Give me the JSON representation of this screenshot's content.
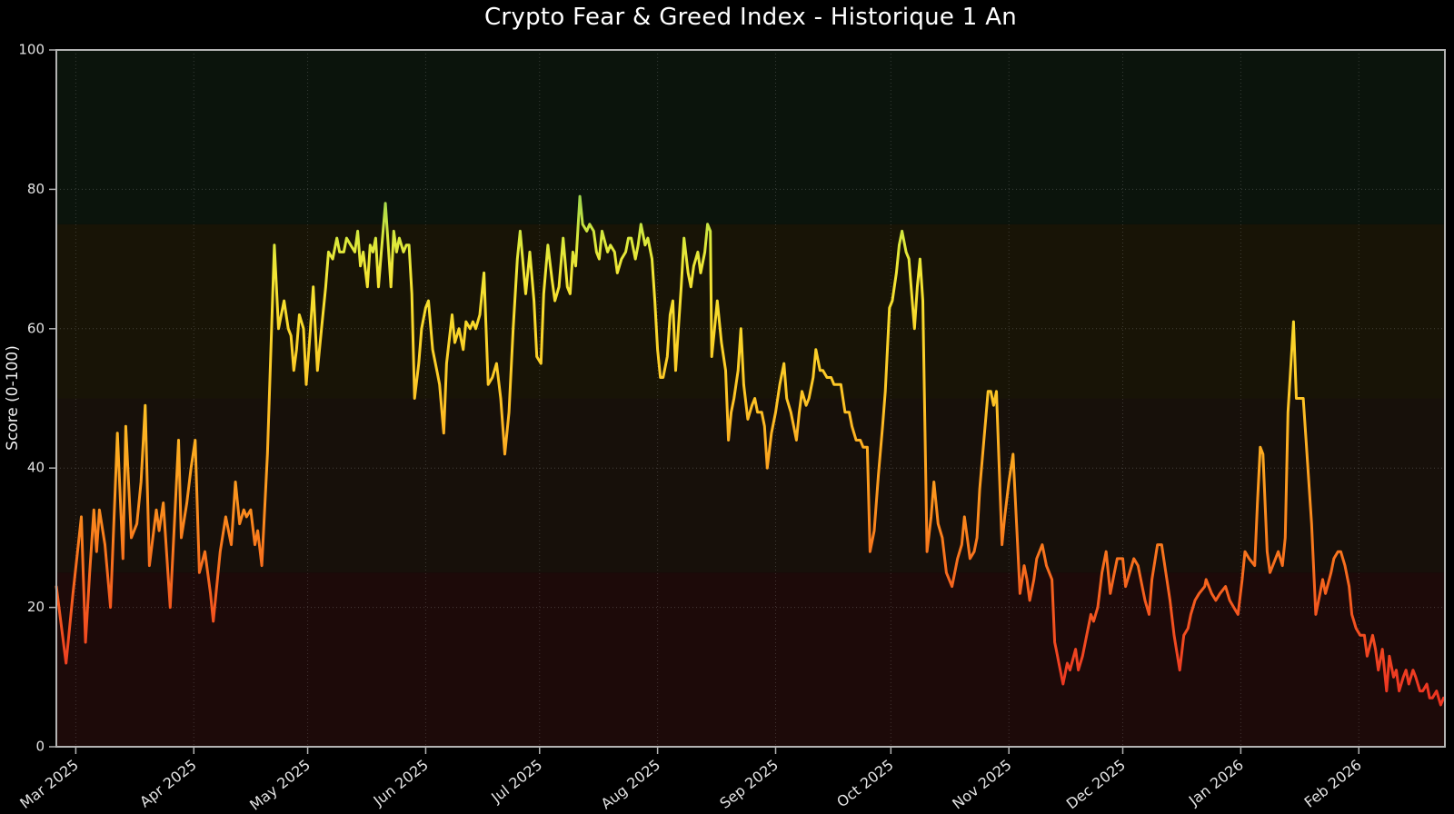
{
  "chart_data": {
    "type": "line",
    "title": "Crypto Fear & Greed Index - Historique 1 An",
    "ylabel": "Score (0-100)",
    "ylim": [
      0,
      100
    ],
    "yticks": [
      0,
      20,
      40,
      60,
      80,
      100
    ],
    "grid": "dotted, horizontal at y-ticks and vertical at month ticks",
    "legend": "none",
    "x_unit": "daily dates, late Feb 2025 to late Feb 2026",
    "x_ticks": [
      {
        "label": "Mar 2025",
        "f": 0.014
      },
      {
        "label": "Apr 2025",
        "f": 0.099
      },
      {
        "label": "May 2025",
        "f": 0.181
      },
      {
        "label": "Jun 2025",
        "f": 0.266
      },
      {
        "label": "Jul 2025",
        "f": 0.348
      },
      {
        "label": "Aug 2025",
        "f": 0.433
      },
      {
        "label": "Sep 2025",
        "f": 0.518
      },
      {
        "label": "Oct 2025",
        "f": 0.601
      },
      {
        "label": "Nov 2025",
        "f": 0.686
      },
      {
        "label": "Dec 2025",
        "f": 0.768
      },
      {
        "label": "Jan 2026",
        "f": 0.853
      },
      {
        "label": "Feb 2026",
        "f": 0.938
      }
    ],
    "bands": [
      {
        "from": 0,
        "to": 25,
        "color": "#1d0a09"
      },
      {
        "from": 25,
        "to": 50,
        "color": "#17100a"
      },
      {
        "from": 50,
        "to": 75,
        "color": "#181406"
      },
      {
        "from": 75,
        "to": 100,
        "color": "#0b140c"
      }
    ],
    "line_gradient": [
      {
        "value": 0,
        "color": "#e8281e"
      },
      {
        "value": 10,
        "color": "#ee3b22"
      },
      {
        "value": 20,
        "color": "#f4581f"
      },
      {
        "value": 30,
        "color": "#f97d1d"
      },
      {
        "value": 40,
        "color": "#fca21f"
      },
      {
        "value": 50,
        "color": "#fdc426"
      },
      {
        "value": 60,
        "color": "#f9d62a"
      },
      {
        "value": 68,
        "color": "#f2e635"
      },
      {
        "value": 73,
        "color": "#d9e83c"
      },
      {
        "value": 78,
        "color": "#a8d94a"
      },
      {
        "value": 85,
        "color": "#6cc24e"
      },
      {
        "value": 100,
        "color": "#3fae4e"
      }
    ],
    "points": [
      [
        0.0,
        23
      ],
      [
        0.007,
        12
      ],
      [
        0.012,
        22
      ],
      [
        0.018,
        33
      ],
      [
        0.021,
        15
      ],
      [
        0.024,
        25
      ],
      [
        0.027,
        34
      ],
      [
        0.029,
        28
      ],
      [
        0.031,
        34
      ],
      [
        0.035,
        29
      ],
      [
        0.039,
        20
      ],
      [
        0.044,
        45
      ],
      [
        0.048,
        27
      ],
      [
        0.05,
        46
      ],
      [
        0.054,
        30
      ],
      [
        0.058,
        32
      ],
      [
        0.061,
        38
      ],
      [
        0.064,
        49
      ],
      [
        0.067,
        26
      ],
      [
        0.072,
        34
      ],
      [
        0.074,
        31
      ],
      [
        0.077,
        35
      ],
      [
        0.082,
        20
      ],
      [
        0.088,
        44
      ],
      [
        0.09,
        30
      ],
      [
        0.094,
        35
      ],
      [
        0.097,
        40
      ],
      [
        0.1,
        44
      ],
      [
        0.103,
        25
      ],
      [
        0.107,
        28
      ],
      [
        0.111,
        22
      ],
      [
        0.113,
        18
      ],
      [
        0.118,
        28
      ],
      [
        0.122,
        33
      ],
      [
        0.126,
        29
      ],
      [
        0.129,
        38
      ],
      [
        0.132,
        32
      ],
      [
        0.135,
        34
      ],
      [
        0.137,
        33
      ],
      [
        0.14,
        34
      ],
      [
        0.143,
        29
      ],
      [
        0.145,
        31
      ],
      [
        0.148,
        26
      ],
      [
        0.152,
        42
      ],
      [
        0.157,
        72
      ],
      [
        0.16,
        60
      ],
      [
        0.162,
        62
      ],
      [
        0.164,
        64
      ],
      [
        0.167,
        60
      ],
      [
        0.169,
        59
      ],
      [
        0.171,
        54
      ],
      [
        0.173,
        57
      ],
      [
        0.175,
        62
      ],
      [
        0.178,
        60
      ],
      [
        0.18,
        52
      ],
      [
        0.183,
        60
      ],
      [
        0.185,
        66
      ],
      [
        0.188,
        54
      ],
      [
        0.191,
        60
      ],
      [
        0.194,
        66
      ],
      [
        0.196,
        71
      ],
      [
        0.199,
        70
      ],
      [
        0.202,
        73
      ],
      [
        0.204,
        71
      ],
      [
        0.207,
        71
      ],
      [
        0.209,
        73
      ],
      [
        0.212,
        72
      ],
      [
        0.215,
        71
      ],
      [
        0.217,
        74
      ],
      [
        0.219,
        69
      ],
      [
        0.221,
        71
      ],
      [
        0.224,
        66
      ],
      [
        0.226,
        72
      ],
      [
        0.228,
        71
      ],
      [
        0.23,
        73
      ],
      [
        0.232,
        66
      ],
      [
        0.234,
        71
      ],
      [
        0.237,
        78
      ],
      [
        0.239,
        72
      ],
      [
        0.241,
        66
      ],
      [
        0.243,
        74
      ],
      [
        0.245,
        71
      ],
      [
        0.247,
        73
      ],
      [
        0.25,
        71
      ],
      [
        0.252,
        72
      ],
      [
        0.254,
        72
      ],
      [
        0.256,
        65
      ],
      [
        0.258,
        50
      ],
      [
        0.261,
        55
      ],
      [
        0.263,
        60
      ],
      [
        0.266,
        63
      ],
      [
        0.268,
        64
      ],
      [
        0.271,
        57
      ],
      [
        0.274,
        54
      ],
      [
        0.276,
        52
      ],
      [
        0.279,
        45
      ],
      [
        0.281,
        55
      ],
      [
        0.285,
        62
      ],
      [
        0.287,
        58
      ],
      [
        0.29,
        60
      ],
      [
        0.293,
        57
      ],
      [
        0.295,
        61
      ],
      [
        0.298,
        60
      ],
      [
        0.3,
        61
      ],
      [
        0.302,
        60
      ],
      [
        0.305,
        62
      ],
      [
        0.308,
        68
      ],
      [
        0.311,
        52
      ],
      [
        0.314,
        53
      ],
      [
        0.317,
        55
      ],
      [
        0.32,
        50
      ],
      [
        0.323,
        42
      ],
      [
        0.326,
        48
      ],
      [
        0.329,
        60
      ],
      [
        0.332,
        70
      ],
      [
        0.334,
        74
      ],
      [
        0.338,
        65
      ],
      [
        0.341,
        71
      ],
      [
        0.344,
        64
      ],
      [
        0.346,
        56
      ],
      [
        0.349,
        55
      ],
      [
        0.351,
        65
      ],
      [
        0.354,
        72
      ],
      [
        0.357,
        67
      ],
      [
        0.359,
        64
      ],
      [
        0.362,
        66
      ],
      [
        0.365,
        73
      ],
      [
        0.368,
        66
      ],
      [
        0.37,
        65
      ],
      [
        0.372,
        71
      ],
      [
        0.374,
        69
      ],
      [
        0.377,
        79
      ],
      [
        0.379,
        75
      ],
      [
        0.382,
        74
      ],
      [
        0.384,
        75
      ],
      [
        0.387,
        74
      ],
      [
        0.389,
        71
      ],
      [
        0.391,
        70
      ],
      [
        0.393,
        74
      ],
      [
        0.397,
        71
      ],
      [
        0.399,
        72
      ],
      [
        0.402,
        71
      ],
      [
        0.404,
        68
      ],
      [
        0.407,
        70
      ],
      [
        0.41,
        71
      ],
      [
        0.412,
        73
      ],
      [
        0.414,
        73
      ],
      [
        0.417,
        70
      ],
      [
        0.419,
        72
      ],
      [
        0.421,
        75
      ],
      [
        0.424,
        72
      ],
      [
        0.426,
        73
      ],
      [
        0.429,
        70
      ],
      [
        0.431,
        64
      ],
      [
        0.433,
        57
      ],
      [
        0.435,
        53
      ],
      [
        0.437,
        53
      ],
      [
        0.44,
        56
      ],
      [
        0.442,
        62
      ],
      [
        0.444,
        64
      ],
      [
        0.446,
        54
      ],
      [
        0.448,
        60
      ],
      [
        0.45,
        66
      ],
      [
        0.452,
        73
      ],
      [
        0.455,
        68
      ],
      [
        0.457,
        66
      ],
      [
        0.459,
        69
      ],
      [
        0.462,
        71
      ],
      [
        0.464,
        68
      ],
      [
        0.467,
        71
      ],
      [
        0.469,
        75
      ],
      [
        0.471,
        74
      ],
      [
        0.472,
        56
      ],
      [
        0.474,
        60
      ],
      [
        0.476,
        64
      ],
      [
        0.479,
        58
      ],
      [
        0.482,
        54
      ],
      [
        0.484,
        44
      ],
      [
        0.486,
        48
      ],
      [
        0.488,
        50
      ],
      [
        0.491,
        54
      ],
      [
        0.493,
        60
      ],
      [
        0.495,
        52
      ],
      [
        0.498,
        47
      ],
      [
        0.501,
        49
      ],
      [
        0.503,
        50
      ],
      [
        0.505,
        48
      ],
      [
        0.508,
        48
      ],
      [
        0.51,
        46
      ],
      [
        0.512,
        40
      ],
      [
        0.515,
        45
      ],
      [
        0.518,
        48
      ],
      [
        0.521,
        52
      ],
      [
        0.524,
        55
      ],
      [
        0.526,
        50
      ],
      [
        0.529,
        48
      ],
      [
        0.531,
        46
      ],
      [
        0.533,
        44
      ],
      [
        0.535,
        48
      ],
      [
        0.537,
        51
      ],
      [
        0.54,
        49
      ],
      [
        0.542,
        50
      ],
      [
        0.545,
        53
      ],
      [
        0.547,
        57
      ],
      [
        0.55,
        54
      ],
      [
        0.552,
        54
      ],
      [
        0.555,
        53
      ],
      [
        0.558,
        53
      ],
      [
        0.56,
        52
      ],
      [
        0.563,
        52
      ],
      [
        0.565,
        52
      ],
      [
        0.568,
        48
      ],
      [
        0.571,
        48
      ],
      [
        0.573,
        46
      ],
      [
        0.576,
        44
      ],
      [
        0.579,
        44
      ],
      [
        0.581,
        43
      ],
      [
        0.584,
        43
      ],
      [
        0.586,
        28
      ],
      [
        0.589,
        31
      ],
      [
        0.592,
        39
      ],
      [
        0.595,
        46
      ],
      [
        0.597,
        51
      ],
      [
        0.6,
        63
      ],
      [
        0.602,
        64
      ],
      [
        0.605,
        68
      ],
      [
        0.607,
        72
      ],
      [
        0.609,
        74
      ],
      [
        0.612,
        71
      ],
      [
        0.614,
        70
      ],
      [
        0.616,
        65
      ],
      [
        0.618,
        60
      ],
      [
        0.62,
        66
      ],
      [
        0.622,
        70
      ],
      [
        0.624,
        64
      ],
      [
        0.627,
        28
      ],
      [
        0.63,
        33
      ],
      [
        0.632,
        38
      ],
      [
        0.635,
        32
      ],
      [
        0.638,
        30
      ],
      [
        0.641,
        25
      ],
      [
        0.645,
        23
      ],
      [
        0.649,
        27
      ],
      [
        0.652,
        29
      ],
      [
        0.654,
        33
      ],
      [
        0.656,
        30
      ],
      [
        0.658,
        27
      ],
      [
        0.661,
        28
      ],
      [
        0.663,
        30
      ],
      [
        0.665,
        37
      ],
      [
        0.668,
        44
      ],
      [
        0.671,
        51
      ],
      [
        0.673,
        51
      ],
      [
        0.675,
        49
      ],
      [
        0.677,
        51
      ],
      [
        0.681,
        29
      ],
      [
        0.683,
        33
      ],
      [
        0.686,
        38
      ],
      [
        0.689,
        42
      ],
      [
        0.692,
        30
      ],
      [
        0.694,
        22
      ],
      [
        0.697,
        26
      ],
      [
        0.699,
        24
      ],
      [
        0.701,
        21
      ],
      [
        0.704,
        24
      ],
      [
        0.706,
        27
      ],
      [
        0.71,
        29
      ],
      [
        0.713,
        26
      ],
      [
        0.717,
        24
      ],
      [
        0.719,
        15
      ],
      [
        0.72,
        14
      ],
      [
        0.722,
        12
      ],
      [
        0.725,
        9
      ],
      [
        0.728,
        12
      ],
      [
        0.73,
        11
      ],
      [
        0.734,
        14
      ],
      [
        0.736,
        11
      ],
      [
        0.739,
        13
      ],
      [
        0.742,
        16
      ],
      [
        0.745,
        19
      ],
      [
        0.747,
        18
      ],
      [
        0.75,
        20
      ],
      [
        0.753,
        25
      ],
      [
        0.756,
        28
      ],
      [
        0.759,
        22
      ],
      [
        0.762,
        25
      ],
      [
        0.764,
        27
      ],
      [
        0.768,
        27
      ],
      [
        0.77,
        23
      ],
      [
        0.773,
        25
      ],
      [
        0.776,
        27
      ],
      [
        0.779,
        26
      ],
      [
        0.782,
        23
      ],
      [
        0.784,
        21
      ],
      [
        0.787,
        19
      ],
      [
        0.789,
        24
      ],
      [
        0.793,
        29
      ],
      [
        0.796,
        29
      ],
      [
        0.799,
        25
      ],
      [
        0.802,
        21
      ],
      [
        0.805,
        16
      ],
      [
        0.809,
        11
      ],
      [
        0.812,
        16
      ],
      [
        0.815,
        17
      ],
      [
        0.817,
        19
      ],
      [
        0.82,
        21
      ],
      [
        0.823,
        22
      ],
      [
        0.827,
        23
      ],
      [
        0.828,
        24
      ],
      [
        0.832,
        22
      ],
      [
        0.835,
        21
      ],
      [
        0.838,
        22
      ],
      [
        0.842,
        23
      ],
      [
        0.845,
        21
      ],
      [
        0.848,
        20
      ],
      [
        0.851,
        19
      ],
      [
        0.854,
        24
      ],
      [
        0.856,
        28
      ],
      [
        0.859,
        27
      ],
      [
        0.863,
        26
      ],
      [
        0.865,
        35
      ],
      [
        0.867,
        43
      ],
      [
        0.869,
        42
      ],
      [
        0.872,
        28
      ],
      [
        0.874,
        25
      ],
      [
        0.878,
        27
      ],
      [
        0.88,
        28
      ],
      [
        0.883,
        26
      ],
      [
        0.885,
        30
      ],
      [
        0.887,
        48
      ],
      [
        0.891,
        61
      ],
      [
        0.893,
        50
      ],
      [
        0.895,
        50
      ],
      [
        0.898,
        50
      ],
      [
        0.9,
        44
      ],
      [
        0.904,
        32
      ],
      [
        0.907,
        19
      ],
      [
        0.91,
        22
      ],
      [
        0.912,
        24
      ],
      [
        0.914,
        22
      ],
      [
        0.918,
        25
      ],
      [
        0.92,
        27
      ],
      [
        0.923,
        28
      ],
      [
        0.925,
        28
      ],
      [
        0.928,
        26
      ],
      [
        0.931,
        23
      ],
      [
        0.933,
        19
      ],
      [
        0.936,
        17
      ],
      [
        0.939,
        16
      ],
      [
        0.942,
        16
      ],
      [
        0.944,
        13
      ],
      [
        0.948,
        16
      ],
      [
        0.95,
        14
      ],
      [
        0.952,
        11
      ],
      [
        0.955,
        14
      ],
      [
        0.958,
        8
      ],
      [
        0.96,
        13
      ],
      [
        0.963,
        10
      ],
      [
        0.965,
        11
      ],
      [
        0.967,
        8
      ],
      [
        0.97,
        10
      ],
      [
        0.972,
        11
      ],
      [
        0.974,
        9
      ],
      [
        0.977,
        11
      ],
      [
        0.979,
        10
      ],
      [
        0.982,
        8
      ],
      [
        0.984,
        8
      ],
      [
        0.987,
        9
      ],
      [
        0.989,
        7
      ],
      [
        0.991,
        7
      ],
      [
        0.994,
        8
      ],
      [
        0.997,
        6
      ],
      [
        0.999,
        7
      ]
    ]
  },
  "colors": {
    "background": "#000000",
    "spine": "#b3b3b3",
    "grid": "#9a9a9a",
    "tick_label": "#e3e3e3",
    "title": "#ffffff",
    "line_width": 3
  }
}
